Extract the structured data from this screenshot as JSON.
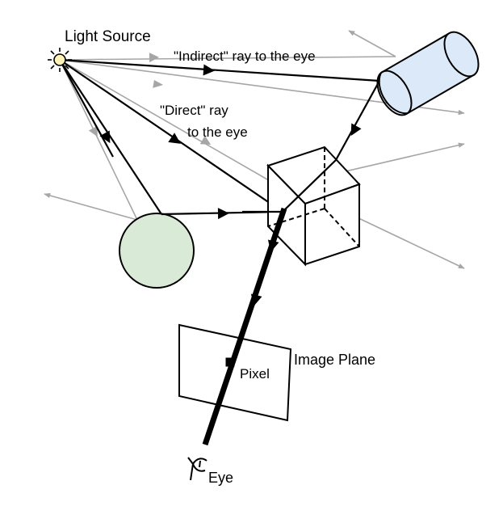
{
  "labels": {
    "light_source": "Light Source",
    "indirect_ray": "\"Indirect\" ray to the eye",
    "direct_ray_line1": "\"Direct\" ray",
    "direct_ray_line2": "to the eye",
    "pixel": "Pixel",
    "image_plane": "Image Plane",
    "eye": "Eye"
  },
  "colors": {
    "ray_black": "#000000",
    "ray_gray": "#a6a6a6",
    "light_fill": "#fff3b8",
    "cylinder_fill": "#dce9f8",
    "sphere_fill": "#d9ead6",
    "cube_stroke": "#000000"
  },
  "icons": {
    "light": "sun-icon",
    "eye": "eye-icon"
  }
}
